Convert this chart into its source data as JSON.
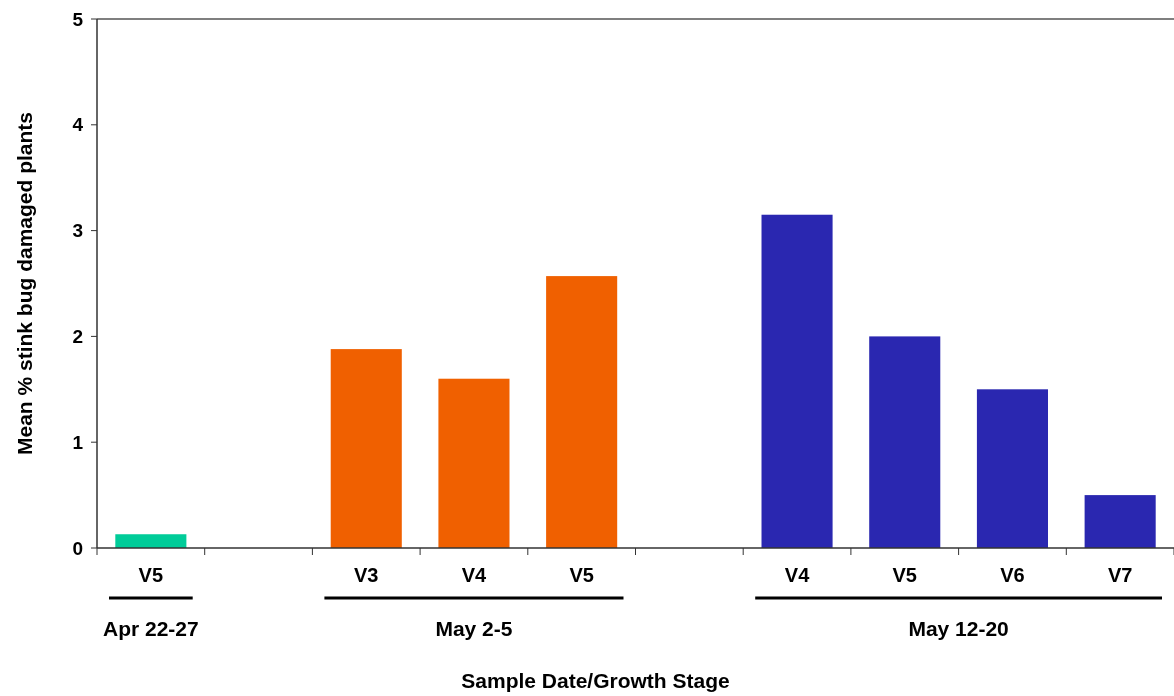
{
  "chart_data": {
    "type": "bar",
    "xlabel": "Sample Date/Growth Stage",
    "ylabel": "Mean % stink bug damaged plants",
    "categories": [
      "V5",
      null,
      "V3",
      "V4",
      "V5",
      null,
      "V4",
      "V5",
      "V6",
      "V7"
    ],
    "series": [
      {
        "color": "#00cc99",
        "values": [
          0.13,
          null,
          null,
          null,
          null,
          null,
          null,
          null,
          null,
          null
        ]
      },
      {
        "color": "#f06000",
        "values": [
          null,
          null,
          1.88,
          1.6,
          2.57,
          null,
          null,
          null,
          null,
          null
        ]
      },
      {
        "color": "#2a27b0",
        "values": [
          null,
          null,
          null,
          null,
          null,
          null,
          3.15,
          2.0,
          1.5,
          0.5
        ]
      }
    ],
    "annotations": [
      "Apr 22-27",
      "May 2-5",
      "May 12-20"
    ],
    "ylim": [
      0,
      5
    ],
    "yticks": [
      0,
      1,
      2,
      3,
      4,
      5
    ],
    "grid": false
  }
}
